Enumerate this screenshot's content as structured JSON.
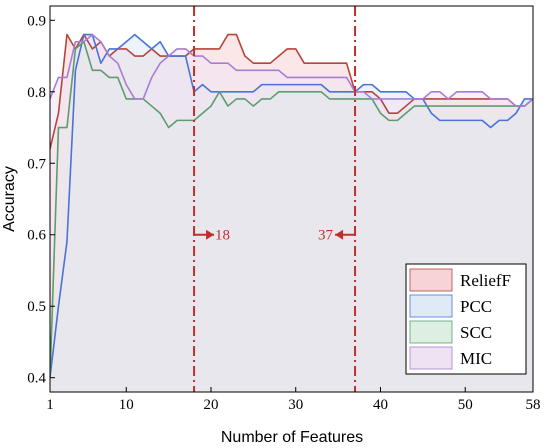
{
  "chart_data": {
    "type": "area",
    "xlabel": "Number of Features",
    "ylabel": "Accuracy",
    "xlim": [
      1,
      58
    ],
    "ylim": [
      0.38,
      0.92
    ],
    "xticks": [
      1,
      10,
      20,
      30,
      40,
      50,
      58
    ],
    "xtick_labels": [
      "1",
      "10",
      "20",
      "30",
      "40",
      "50",
      "58"
    ],
    "yticks": [
      0.4,
      0.5,
      0.6,
      0.7,
      0.8,
      0.9
    ],
    "ytick_labels": [
      "0.4",
      "0.5",
      "0.6",
      "0.7",
      "0.8",
      "0.9"
    ],
    "grid": false,
    "legend_position": "bottom-right",
    "series": [
      {
        "name": "ReliefF",
        "line_color": "#b5453c",
        "fill_color": "#f8d3d5",
        "x": [
          1,
          2,
          3,
          4,
          5,
          6,
          7,
          8,
          9,
          10,
          11,
          12,
          13,
          14,
          15,
          16,
          17,
          18,
          19,
          20,
          21,
          22,
          23,
          24,
          25,
          26,
          27,
          28,
          29,
          30,
          31,
          32,
          33,
          34,
          35,
          36,
          37,
          38,
          39,
          40,
          41,
          42,
          43,
          44,
          45,
          46,
          47,
          48,
          49,
          50,
          51,
          52,
          53,
          54,
          55,
          56,
          57,
          58
        ],
        "y": [
          0.72,
          0.77,
          0.88,
          0.86,
          0.88,
          0.86,
          0.87,
          0.85,
          0.86,
          0.86,
          0.85,
          0.85,
          0.86,
          0.85,
          0.85,
          0.85,
          0.85,
          0.86,
          0.86,
          0.86,
          0.86,
          0.88,
          0.88,
          0.85,
          0.84,
          0.84,
          0.84,
          0.85,
          0.86,
          0.86,
          0.84,
          0.84,
          0.84,
          0.84,
          0.84,
          0.84,
          0.8,
          0.8,
          0.8,
          0.79,
          0.77,
          0.77,
          0.78,
          0.79,
          0.79,
          0.79,
          0.79,
          0.79,
          0.79,
          0.79,
          0.79,
          0.79,
          0.79,
          0.79,
          0.79,
          0.78,
          0.78,
          0.79
        ]
      },
      {
        "name": "PCC",
        "line_color": "#4a72d8",
        "fill_color": "#dfeaf6",
        "x": [
          1,
          2,
          3,
          4,
          5,
          6,
          7,
          8,
          9,
          10,
          11,
          12,
          13,
          14,
          15,
          16,
          17,
          18,
          19,
          20,
          21,
          22,
          23,
          24,
          25,
          26,
          27,
          28,
          29,
          30,
          31,
          32,
          33,
          34,
          35,
          36,
          37,
          38,
          39,
          40,
          41,
          42,
          43,
          44,
          45,
          46,
          47,
          48,
          49,
          50,
          51,
          52,
          53,
          54,
          55,
          56,
          57,
          58
        ],
        "y": [
          0.4,
          0.5,
          0.59,
          0.83,
          0.88,
          0.88,
          0.84,
          0.86,
          0.86,
          0.87,
          0.88,
          0.87,
          0.86,
          0.87,
          0.85,
          0.85,
          0.85,
          0.8,
          0.81,
          0.8,
          0.8,
          0.8,
          0.8,
          0.8,
          0.8,
          0.81,
          0.81,
          0.81,
          0.81,
          0.81,
          0.81,
          0.81,
          0.81,
          0.8,
          0.8,
          0.8,
          0.8,
          0.81,
          0.81,
          0.8,
          0.8,
          0.8,
          0.8,
          0.79,
          0.79,
          0.77,
          0.76,
          0.76,
          0.76,
          0.76,
          0.76,
          0.76,
          0.75,
          0.76,
          0.76,
          0.77,
          0.79,
          0.79
        ]
      },
      {
        "name": "SCC",
        "line_color": "#5a9e6f",
        "fill_color": "#dcefe2",
        "x": [
          1,
          2,
          3,
          4,
          5,
          6,
          7,
          8,
          9,
          10,
          11,
          12,
          13,
          14,
          15,
          16,
          17,
          18,
          19,
          20,
          21,
          22,
          23,
          24,
          25,
          26,
          27,
          28,
          29,
          30,
          31,
          32,
          33,
          34,
          35,
          36,
          37,
          38,
          39,
          40,
          41,
          42,
          43,
          44,
          45,
          46,
          47,
          48,
          49,
          50,
          51,
          52,
          53,
          54,
          55,
          56,
          57,
          58
        ],
        "y": [
          0.4,
          0.75,
          0.75,
          0.86,
          0.87,
          0.83,
          0.83,
          0.82,
          0.82,
          0.79,
          0.79,
          0.79,
          0.78,
          0.77,
          0.75,
          0.76,
          0.76,
          0.76,
          0.77,
          0.78,
          0.8,
          0.78,
          0.79,
          0.79,
          0.78,
          0.79,
          0.79,
          0.8,
          0.8,
          0.8,
          0.8,
          0.8,
          0.8,
          0.79,
          0.79,
          0.79,
          0.79,
          0.79,
          0.79,
          0.77,
          0.76,
          0.76,
          0.77,
          0.78,
          0.78,
          0.78,
          0.78,
          0.78,
          0.78,
          0.78,
          0.78,
          0.78,
          0.78,
          0.78,
          0.78,
          0.78,
          0.78,
          0.79
        ]
      },
      {
        "name": "MIC",
        "line_color": "#a77ed6",
        "fill_color": "#eee3f3",
        "x": [
          1,
          2,
          3,
          4,
          5,
          6,
          7,
          8,
          9,
          10,
          11,
          12,
          13,
          14,
          15,
          16,
          17,
          18,
          19,
          20,
          21,
          22,
          23,
          24,
          25,
          26,
          27,
          28,
          29,
          30,
          31,
          32,
          33,
          34,
          35,
          36,
          37,
          38,
          39,
          40,
          41,
          42,
          43,
          44,
          45,
          46,
          47,
          48,
          49,
          50,
          51,
          52,
          53,
          54,
          55,
          56,
          57,
          58
        ],
        "y": [
          0.79,
          0.82,
          0.82,
          0.87,
          0.87,
          0.88,
          0.87,
          0.85,
          0.84,
          0.81,
          0.79,
          0.79,
          0.82,
          0.84,
          0.85,
          0.86,
          0.86,
          0.85,
          0.85,
          0.84,
          0.84,
          0.84,
          0.83,
          0.83,
          0.83,
          0.83,
          0.83,
          0.83,
          0.82,
          0.82,
          0.82,
          0.82,
          0.82,
          0.82,
          0.82,
          0.82,
          0.8,
          0.8,
          0.79,
          0.79,
          0.79,
          0.79,
          0.79,
          0.79,
          0.79,
          0.8,
          0.8,
          0.79,
          0.8,
          0.8,
          0.8,
          0.8,
          0.79,
          0.79,
          0.79,
          0.78,
          0.78,
          0.79
        ]
      }
    ],
    "markers": [
      {
        "x": 18,
        "label": "18",
        "arrow": "right"
      },
      {
        "x": 37,
        "label": "37",
        "arrow": "left"
      }
    ]
  }
}
